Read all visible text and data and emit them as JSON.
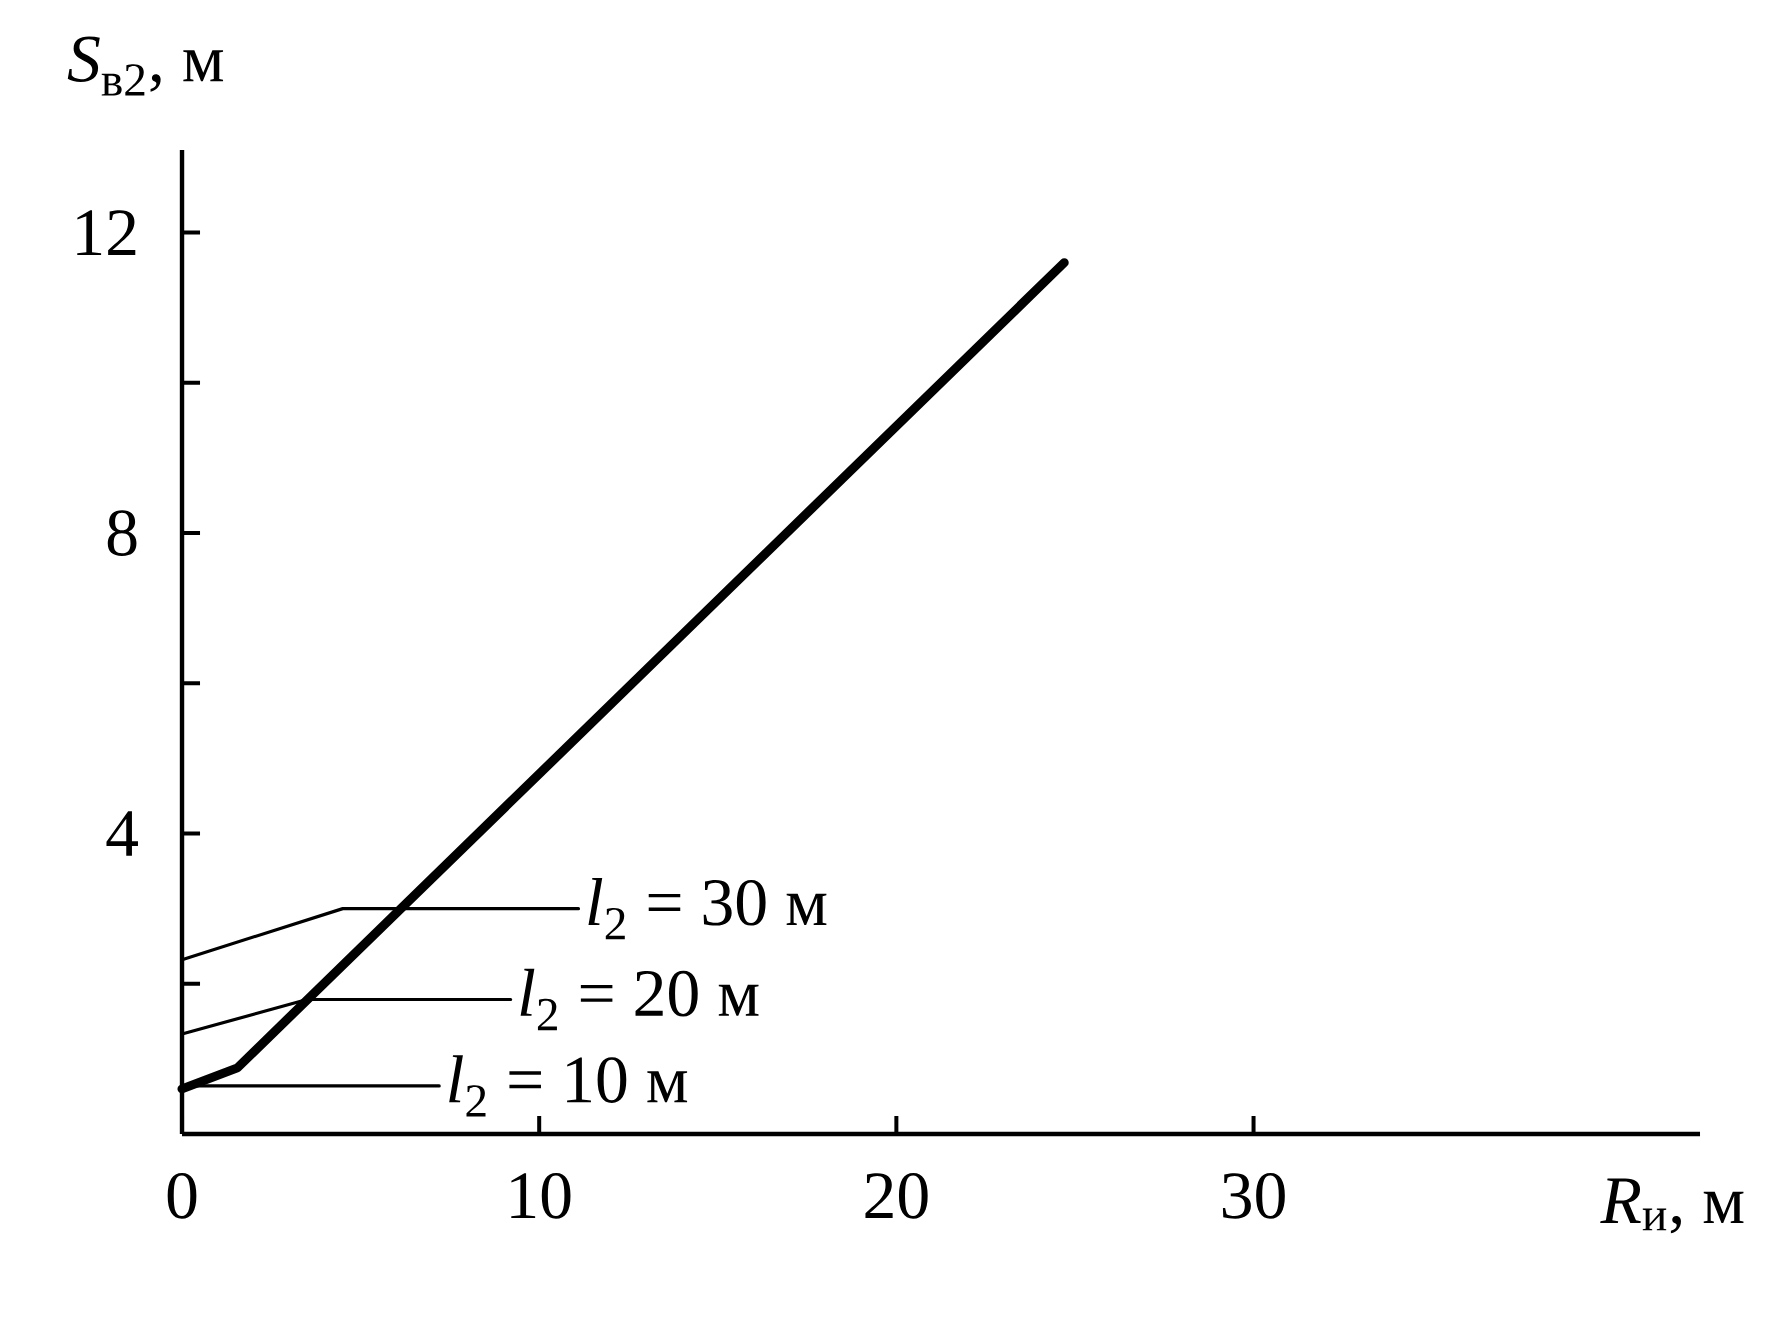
{
  "chart_data": {
    "type": "line",
    "xlabel": "*R*$_{и}$, м",
    "ylabel": "*S*$_{в2}$, м",
    "xlim": [
      0,
      42.5
    ],
    "ylim": [
      0,
      13.1
    ],
    "xticks": [
      0,
      10,
      20,
      30
    ],
    "yticks": [
      {
        "value": 2,
        "label": null
      },
      4,
      {
        "value": 6,
        "label": null
      },
      8,
      {
        "value": 10,
        "label": null
      },
      12
    ],
    "grid": false,
    "marker": "none",
    "line_style": "solid",
    "series": [
      {
        "color": "#000000",
        "x": [
          0,
          1.55,
          24.7
        ],
        "values": [
          0.6,
          0.88,
          11.6
        ]
      },
      {
        "name": "*l*$_{2}$ = 10 м",
        "color": "#000000",
        "x": [
          0,
          7.2
        ],
        "values": [
          0.64,
          0.64
        ]
      },
      {
        "name": "*l*$_{2}$ = 20 м",
        "color": "#000000",
        "x": [
          0,
          3.5,
          9.2
        ],
        "values": [
          1.33,
          1.79,
          1.79
        ]
      },
      {
        "name": "*l*$_{2}$ = 30 м",
        "color": "#000000",
        "x": [
          0,
          4.5,
          11.1
        ],
        "values": [
          2.32,
          3.0,
          3.0
        ]
      }
    ]
  }
}
